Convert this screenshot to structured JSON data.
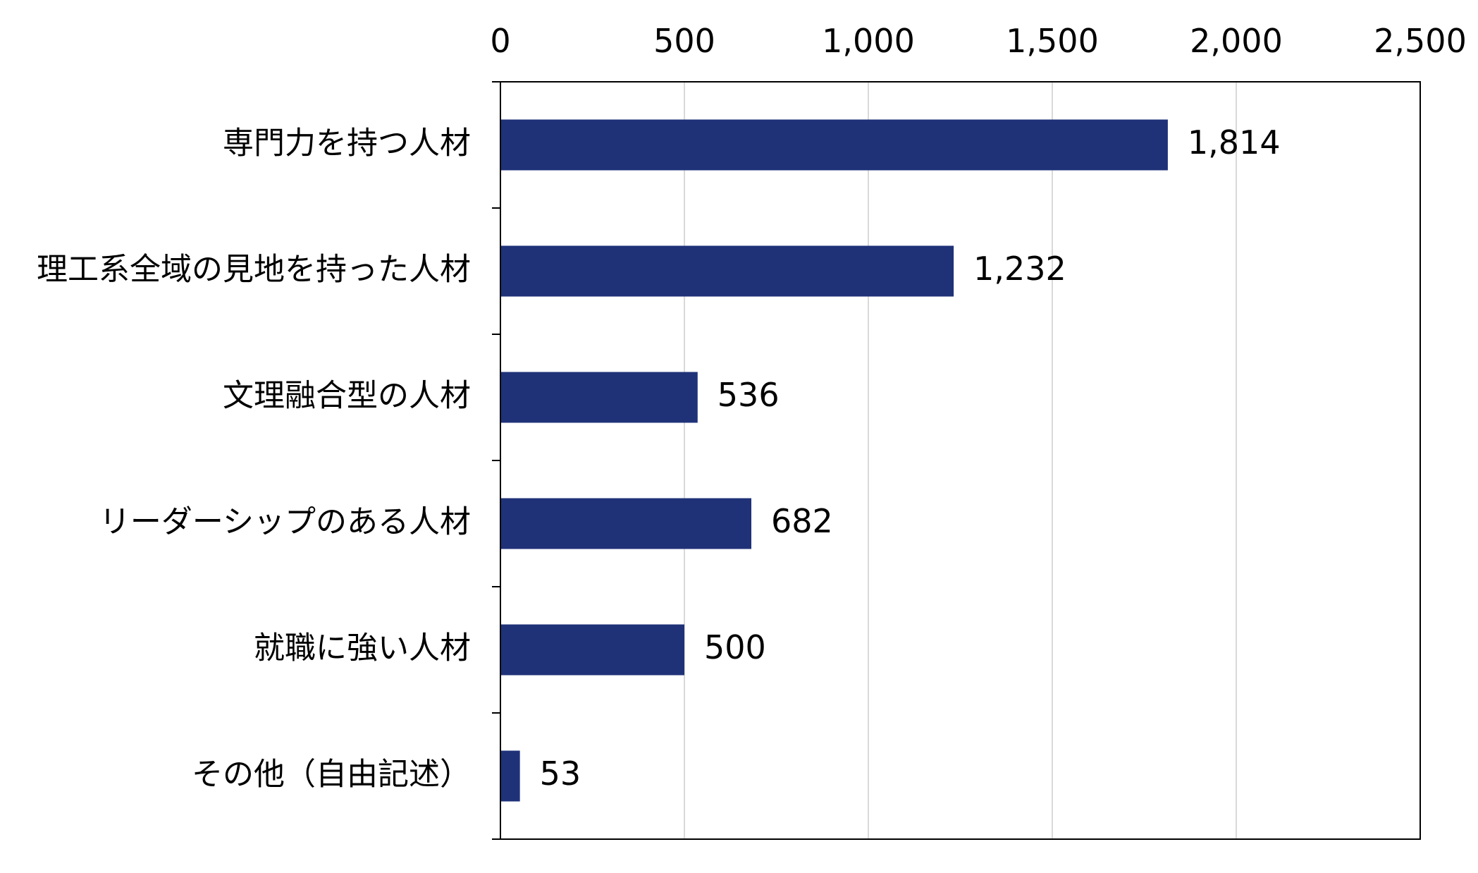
{
  "chart_data": {
    "type": "bar",
    "orientation": "horizontal",
    "title": "",
    "xlabel": "",
    "ylabel": "",
    "categories": [
      "専門力を持つ人材",
      "理工系全域の見地を持った人材",
      "文理融合型の人材",
      "リーダーシップのある人材",
      "就職に強い人材",
      "その他（自由記述）"
    ],
    "values": [
      1814,
      1232,
      536,
      682,
      500,
      53
    ],
    "data_labels": [
      "1,814",
      "1,232",
      "536",
      "682",
      "500",
      "53"
    ],
    "xlim": [
      0,
      2500
    ],
    "x_ticks": [
      0,
      500,
      1000,
      1500,
      2000,
      2500
    ],
    "x_tick_labels": [
      "0",
      "500",
      "1,000",
      "1,500",
      "2,000",
      "2,500"
    ],
    "x_axis_position": "top",
    "grid": "vertical",
    "legend": "none",
    "colors": {
      "bar": "#1F3278",
      "grid": "#D9D9D9",
      "axis": "#000000"
    }
  }
}
